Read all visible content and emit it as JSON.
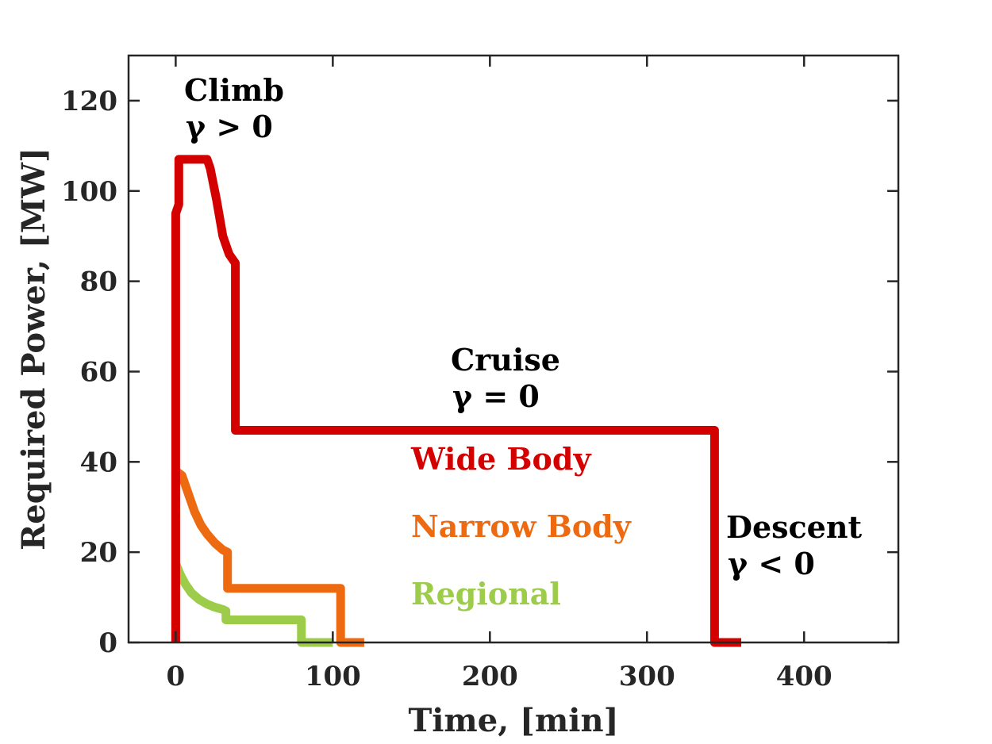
{
  "chart_data": {
    "type": "line",
    "xlabel": "Time, [min]",
    "ylabel": "Required Power, [MW]",
    "xlim": [
      -30,
      460
    ],
    "ylim": [
      0,
      130
    ],
    "xticks": [
      0,
      100,
      200,
      300,
      400
    ],
    "yticks": [
      0,
      20,
      40,
      60,
      80,
      100,
      120
    ],
    "grid": false,
    "series": [
      {
        "name": "Wide Body",
        "color": "#d40000",
        "x": [
          0,
          0,
          2,
          2,
          4,
          20,
          22,
          26,
          30,
          34,
          38,
          38,
          40,
          340,
          343,
          343,
          360
        ],
        "y": [
          0,
          95,
          97,
          107,
          107,
          107,
          105,
          98,
          90,
          86,
          84,
          47,
          47,
          47,
          47,
          0,
          0
        ]
      },
      {
        "name": "Narrow Body",
        "color": "#ed6a10",
        "x": [
          0,
          0,
          4,
          8,
          12,
          16,
          20,
          25,
          30,
          33,
          33,
          35,
          103,
          105,
          105,
          120
        ],
        "y": [
          0,
          38,
          37,
          33,
          29,
          26,
          24,
          22,
          20.5,
          20,
          12,
          12,
          12,
          12,
          0,
          0
        ],
        "labels": []
      },
      {
        "name": "Regional",
        "color": "#9ccc4a",
        "x": [
          0,
          0,
          3,
          6,
          10,
          15,
          20,
          25,
          30,
          32,
          32,
          34,
          78,
          80,
          80,
          100
        ],
        "y": [
          0,
          17.5,
          15,
          13,
          11,
          9.5,
          8.5,
          7.8,
          7.3,
          7,
          5,
          5,
          5,
          5,
          0,
          0
        ]
      }
    ],
    "annotations": [
      {
        "line1": "Climb",
        "line2": "γ > 0"
      },
      {
        "line1": "Cruise",
        "line2": "γ = 0"
      },
      {
        "line1": "Descent",
        "line2": "γ < 0"
      }
    ]
  }
}
